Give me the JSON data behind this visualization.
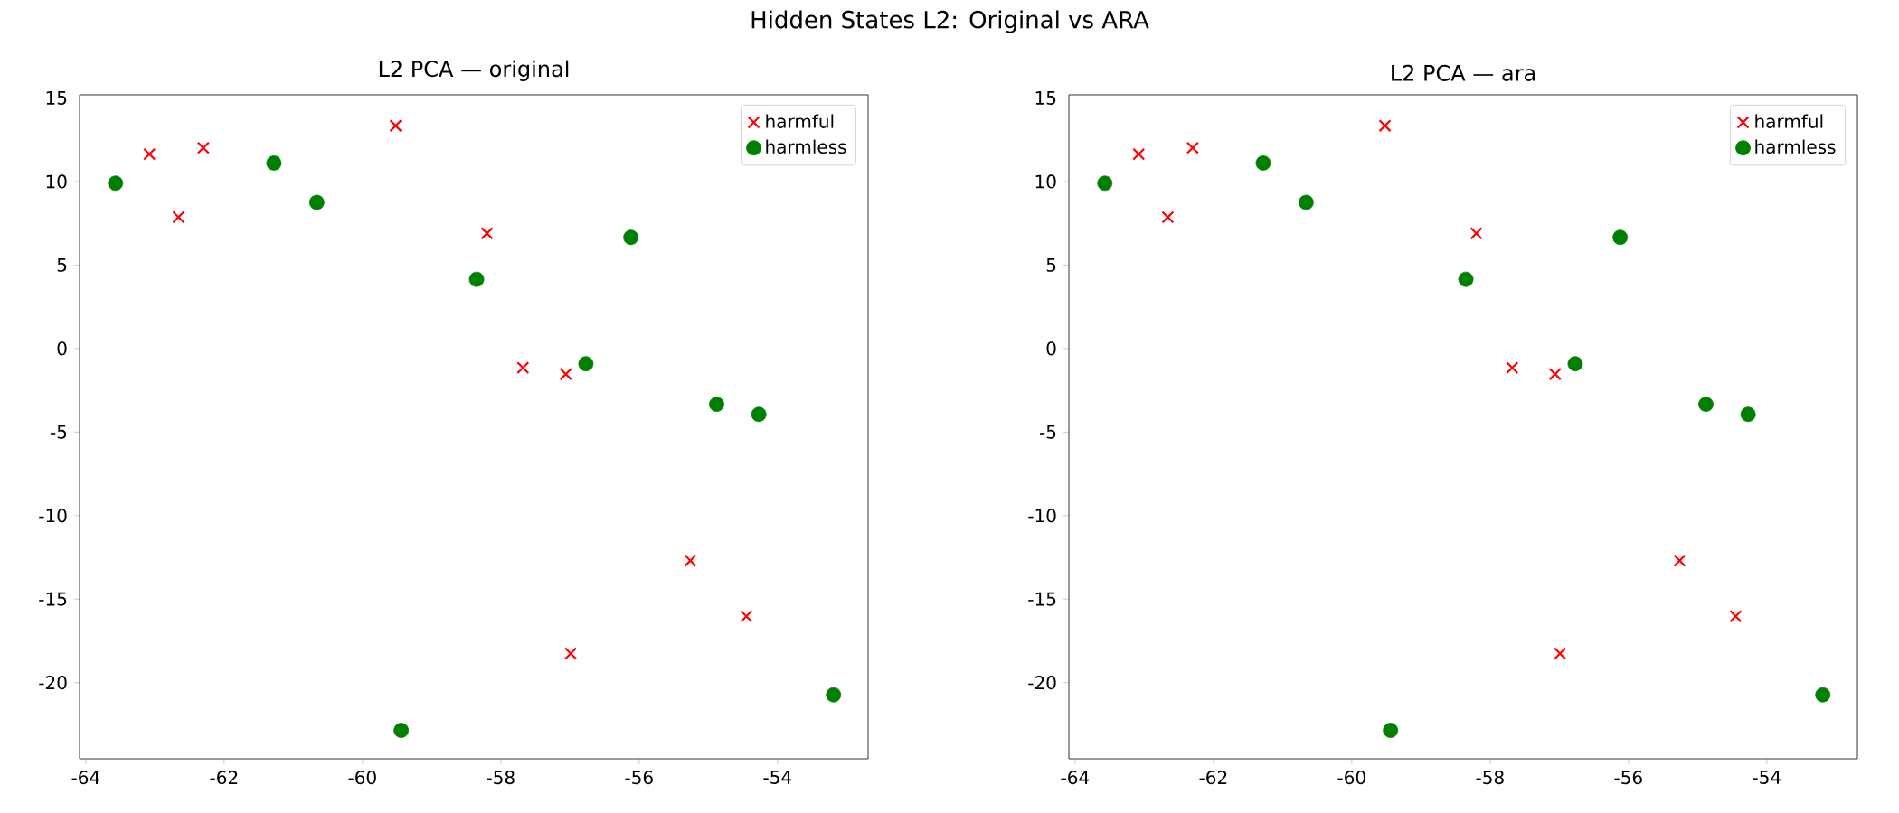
{
  "chart_data": [
    {
      "type": "scatter",
      "title": "Hidden States L2: Original vs ARA",
      "subtitle": "L2 PCA — original",
      "xlim": [
        -64.09,
        -52.69
      ],
      "ylim": [
        -24.56,
        15.19
      ],
      "xticks": [
        -64,
        -62,
        -60,
        -58,
        -56,
        -54
      ],
      "yticks": [
        -20,
        -15,
        -10,
        -5,
        0,
        5,
        10,
        15
      ],
      "legend": "top right",
      "grid": false,
      "series": [
        {
          "name": "harmful",
          "color": "#ff0000",
          "marker": "cross",
          "x": [
            -63.08,
            -62.66,
            -62.3,
            -59.52,
            -58.2,
            -57.68,
            -57.06,
            -56.99,
            -55.26,
            -54.45
          ],
          "values": [
            11.64,
            7.87,
            12.02,
            13.34,
            6.9,
            -1.15,
            -1.53,
            -18.26,
            -12.7,
            -16.03
          ]
        },
        {
          "name": "harmless",
          "color": "#008000",
          "marker": "circle",
          "x": [
            -63.57,
            -61.28,
            -60.66,
            -58.35,
            -56.77,
            -56.12,
            -54.88,
            -54.27,
            -59.44,
            -53.19
          ],
          "values": [
            9.9,
            11.11,
            8.75,
            4.15,
            -0.91,
            6.66,
            -3.34,
            -3.94,
            -22.86,
            -20.73
          ]
        }
      ]
    },
    {
      "type": "scatter",
      "subtitle": "L2 PCA — ara",
      "xlim": [
        -64.09,
        -52.69
      ],
      "ylim": [
        -24.56,
        15.19
      ],
      "xticks": [
        -64,
        -62,
        -60,
        -58,
        -56,
        -54
      ],
      "yticks": [
        -20,
        -15,
        -10,
        -5,
        0,
        5,
        10,
        15
      ],
      "legend": "top right",
      "grid": false,
      "series": [
        {
          "name": "harmful",
          "color": "#ff0000",
          "marker": "cross",
          "x": [
            -63.08,
            -62.66,
            -62.3,
            -59.52,
            -58.2,
            -57.68,
            -57.06,
            -56.99,
            -55.26,
            -54.45
          ],
          "values": [
            11.64,
            7.87,
            12.02,
            13.34,
            6.9,
            -1.15,
            -1.53,
            -18.26,
            -12.7,
            -16.03
          ]
        },
        {
          "name": "harmless",
          "color": "#008000",
          "marker": "circle",
          "x": [
            -63.57,
            -61.28,
            -60.66,
            -58.35,
            -56.77,
            -56.12,
            -54.88,
            -54.27,
            -59.44,
            -53.19
          ],
          "values": [
            9.9,
            11.11,
            8.75,
            4.15,
            -0.91,
            6.66,
            -3.34,
            -3.94,
            -22.86,
            -20.73
          ]
        }
      ]
    }
  ]
}
